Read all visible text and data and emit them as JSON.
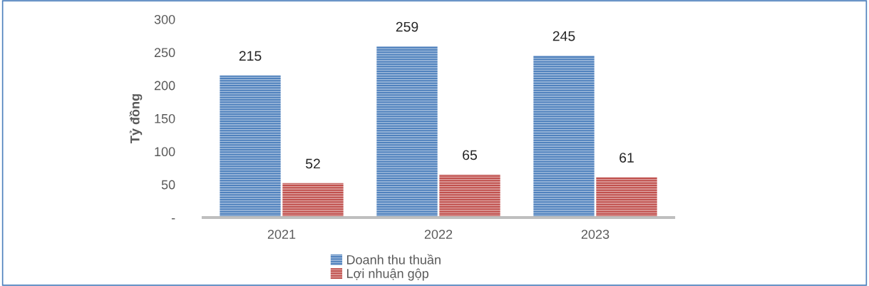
{
  "chart_data": {
    "type": "bar",
    "ylabel": "Tỷ đồng",
    "categories": [
      "2021",
      "2022",
      "2023"
    ],
    "series": [
      {
        "name": "Doanh thu thuần",
        "color": "#4f81bd",
        "values": [
          215,
          259,
          245
        ]
      },
      {
        "name": "Lợi nhuận gộp",
        "color": "#c0504d",
        "values": [
          52,
          65,
          61
        ]
      }
    ],
    "ylim": [
      0,
      300
    ],
    "yticks": [
      {
        "value": 0,
        "label": "-"
      },
      50,
      100,
      150,
      200,
      250,
      300
    ],
    "data_labels": true,
    "grid": false,
    "legend": "bottom"
  }
}
